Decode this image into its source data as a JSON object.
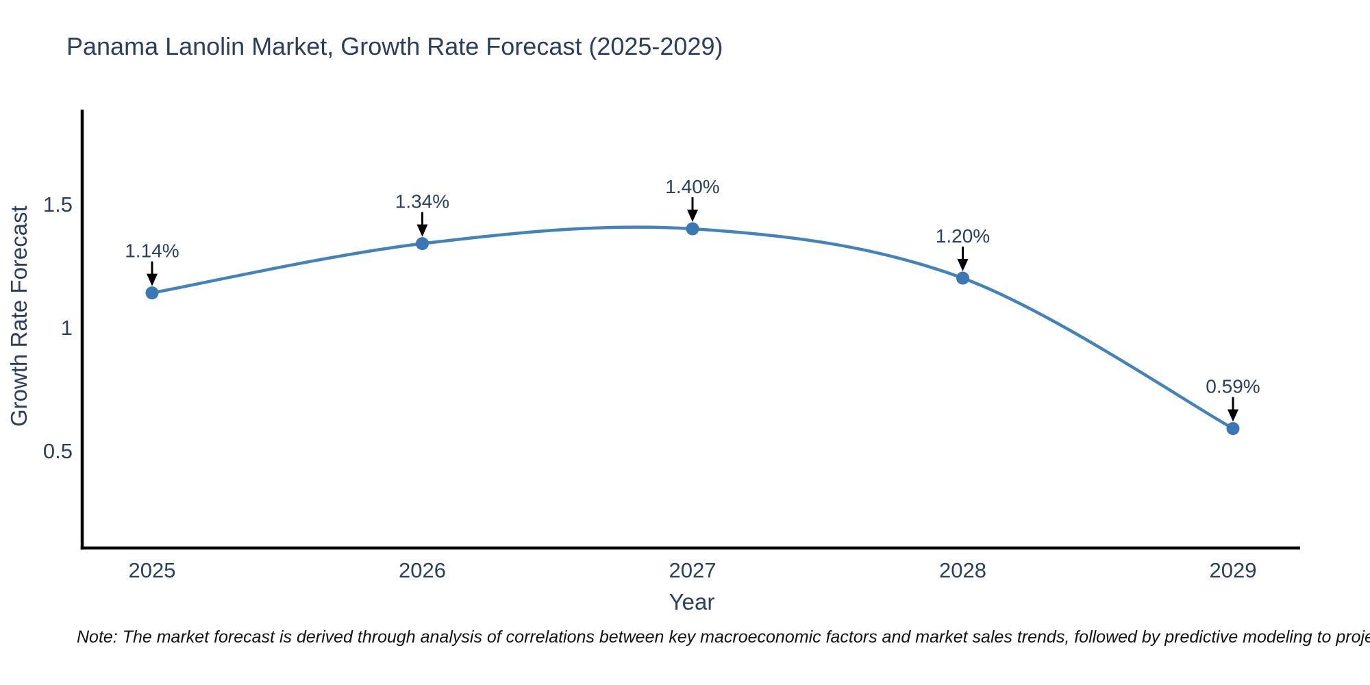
{
  "title": "Panama Lanolin Market, Growth Rate Forecast (2025-2029)",
  "note": "Note: The market forecast is derived through analysis of correlations between key macroeconomic factors and market sales trends, followed by predictive modeling to project future sales",
  "chart_data": {
    "type": "line",
    "line_shape": "spline",
    "title": "Panama Lanolin Market, Growth Rate Forecast (2025-2029)",
    "xlabel": "Year",
    "ylabel": "Growth Rate Forecast",
    "categories": [
      "2025",
      "2026",
      "2027",
      "2028",
      "2029"
    ],
    "values": [
      1.14,
      1.34,
      1.4,
      1.2,
      0.59
    ],
    "point_labels": [
      "1.14%",
      "1.34%",
      "1.40%",
      "1.20%",
      "0.59%"
    ],
    "y_ticks": [
      {
        "label": "1.5",
        "value": 1.5
      },
      {
        "label": "1",
        "value": 1.0
      },
      {
        "label": "0.5",
        "value": 0.5
      }
    ],
    "ylim": [
      0.1,
      1.95
    ],
    "grid": false,
    "legend": "none",
    "annotation_arrows": true,
    "colors": {
      "line": "#4282bd",
      "marker": "#3a78b5",
      "axis": "#000000",
      "arrow": "#000000",
      "text": "#2a3f5f",
      "note_text": "#111111",
      "background": "#ffffff"
    }
  }
}
